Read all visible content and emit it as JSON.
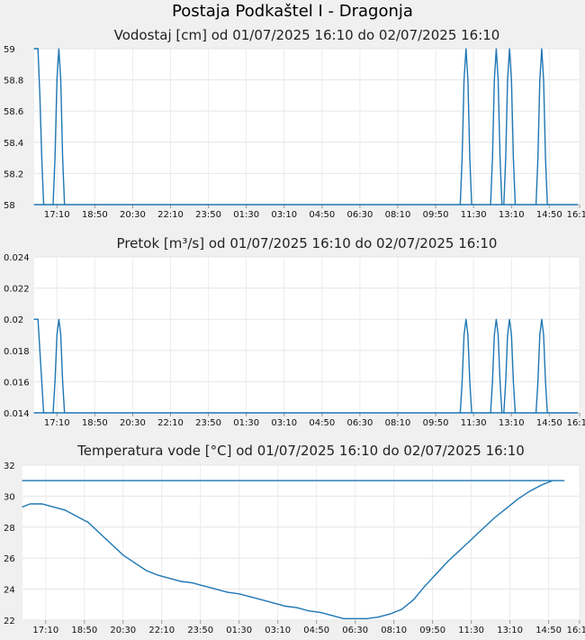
{
  "page_title": "Postaja Podkaštel I - Dragonja",
  "chart_data": [
    {
      "type": "line",
      "title": "Vodostaj [cm] od 01/07/2025 16:10 do 02/07/2025 16:10",
      "xlabel": "",
      "ylabel": "",
      "x_ticks": [
        "17:10",
        "18:50",
        "20:30",
        "22:10",
        "23:50",
        "01:30",
        "03:10",
        "04:50",
        "06:30",
        "08:10",
        "09:50",
        "11:30",
        "13:10",
        "14:50",
        "16:10"
      ],
      "y_ticks": [
        "58",
        "58.2",
        "58.4",
        "58.6",
        "58.8",
        "59"
      ],
      "ylim": [
        58,
        59
      ],
      "color": "#1f77b4",
      "grid": true,
      "series": [
        {
          "x": [
            "16:10",
            "16:15",
            "16:20",
            "16:25",
            "16:30",
            "16:35",
            "16:40",
            "16:45",
            "16:50",
            "16:55",
            "17:00",
            "17:05",
            "17:10",
            "17:15",
            "17:20",
            "17:25",
            "17:30",
            "17:35",
            "17:40",
            "17:45",
            "17:50",
            "10:50",
            "10:55",
            "11:00",
            "11:05",
            "11:10",
            "11:15",
            "11:20",
            "11:25",
            "11:30",
            "11:35",
            "11:40",
            "11:45",
            "11:50",
            "11:55",
            "12:00",
            "12:05",
            "12:10",
            "12:15",
            "12:20",
            "12:25",
            "12:30",
            "12:35",
            "12:40",
            "12:45",
            "12:50",
            "12:55",
            "13:00",
            "13:05",
            "13:10",
            "13:15",
            "13:20",
            "13:25",
            "13:30",
            "13:35",
            "13:40",
            "13:45",
            "13:50",
            "13:55",
            "14:00",
            "14:05",
            "14:10",
            "14:15",
            "14:20",
            "14:25",
            "14:30",
            "14:35",
            "14:40",
            "14:45",
            "14:50",
            "14:55",
            "15:00",
            "15:05",
            "15:10",
            "15:15",
            "15:20",
            "15:25",
            "15:30",
            "15:35",
            "15:40",
            "15:45",
            "15:50",
            "15:55",
            "16:00",
            "16:05",
            "16:10"
          ],
          "values": [
            59,
            59,
            59,
            58.7,
            58.3,
            58,
            58,
            58,
            58,
            58,
            58,
            58.3,
            58.8,
            59,
            58.8,
            58.3,
            58,
            58,
            58,
            58,
            58,
            58,
            58,
            58.3,
            58.8,
            59,
            58.8,
            58.3,
            58,
            58,
            58,
            58,
            58,
            58,
            58,
            58,
            58,
            58,
            58,
            58.3,
            58.8,
            59,
            58.8,
            58.3,
            58,
            58,
            58.3,
            58.8,
            59,
            58.8,
            58.3,
            58,
            58,
            58,
            58,
            58,
            58,
            58,
            58,
            58,
            58,
            58,
            58,
            58.3,
            58.8,
            59,
            58.8,
            58.3,
            58,
            58,
            58,
            58,
            58,
            58,
            58,
            58,
            58,
            58,
            58,
            58,
            58,
            58,
            58,
            58,
            58,
            58
          ]
        }
      ]
    },
    {
      "type": "line",
      "title": "Pretok [m³/s] od 01/07/2025 16:10 do 02/07/2025 16:10",
      "xlabel": "",
      "ylabel": "",
      "x_ticks": [
        "17:10",
        "18:50",
        "20:30",
        "22:10",
        "23:50",
        "01:30",
        "03:10",
        "04:50",
        "06:30",
        "08:10",
        "09:50",
        "11:30",
        "13:10",
        "14:50",
        "16:10"
      ],
      "y_ticks": [
        "0.014",
        "0.016",
        "0.018",
        "0.02",
        "0.022",
        "0.024"
      ],
      "ylim": [
        0.014,
        0.024
      ],
      "color": "#1f77b4",
      "grid": true,
      "series": [
        {
          "x": [
            "16:10",
            "16:15",
            "16:20",
            "16:25",
            "16:30",
            "16:35",
            "16:40",
            "16:45",
            "16:50",
            "16:55",
            "17:00",
            "17:05",
            "17:10",
            "17:15",
            "17:20",
            "17:25",
            "17:30",
            "17:35",
            "17:40",
            "17:45",
            "17:50",
            "10:50",
            "10:55",
            "11:00",
            "11:05",
            "11:10",
            "11:15",
            "11:20",
            "11:25",
            "11:30",
            "11:35",
            "11:40",
            "11:45",
            "11:50",
            "11:55",
            "12:00",
            "12:05",
            "12:10",
            "12:15",
            "12:20",
            "12:25",
            "12:30",
            "12:35",
            "12:40",
            "12:45",
            "12:50",
            "12:55",
            "13:00",
            "13:05",
            "13:10",
            "13:15",
            "13:20",
            "13:25",
            "13:30",
            "13:35",
            "13:40",
            "13:45",
            "13:50",
            "13:55",
            "14:00",
            "14:05",
            "14:10",
            "14:15",
            "14:20",
            "14:25",
            "14:30",
            "14:35",
            "14:40",
            "14:45",
            "14:50",
            "14:55",
            "15:00",
            "15:05",
            "15:10",
            "15:15",
            "15:20",
            "15:25",
            "15:30",
            "15:35",
            "15:40",
            "15:45",
            "15:50",
            "15:55",
            "16:00",
            "16:05",
            "16:10"
          ],
          "values": [
            0.02,
            0.02,
            0.02,
            0.018,
            0.016,
            0.014,
            0.014,
            0.014,
            0.014,
            0.014,
            0.014,
            0.016,
            0.019,
            0.02,
            0.019,
            0.016,
            0.014,
            0.014,
            0.014,
            0.014,
            0.014,
            0.014,
            0.014,
            0.016,
            0.019,
            0.02,
            0.019,
            0.016,
            0.014,
            0.014,
            0.014,
            0.014,
            0.014,
            0.014,
            0.014,
            0.014,
            0.014,
            0.014,
            0.014,
            0.016,
            0.019,
            0.02,
            0.019,
            0.016,
            0.014,
            0.014,
            0.016,
            0.019,
            0.02,
            0.019,
            0.016,
            0.014,
            0.014,
            0.014,
            0.014,
            0.014,
            0.014,
            0.014,
            0.014,
            0.014,
            0.014,
            0.014,
            0.014,
            0.016,
            0.019,
            0.02,
            0.019,
            0.016,
            0.014,
            0.014,
            0.014,
            0.014,
            0.014,
            0.014,
            0.014,
            0.014,
            0.014,
            0.014,
            0.014,
            0.014,
            0.014,
            0.014,
            0.014,
            0.014,
            0.014,
            0.014
          ]
        }
      ]
    },
    {
      "type": "line",
      "title": "Temperatura vode [°C] od 01/07/2025 16:10 do 02/07/2025 16:10",
      "xlabel": "",
      "ylabel": "",
      "x_ticks": [
        "17:10",
        "18:50",
        "20:30",
        "22:10",
        "23:50",
        "01:30",
        "03:10",
        "04:50",
        "06:30",
        "08:10",
        "09:50",
        "11:30",
        "13:10",
        "14:50",
        "16:10"
      ],
      "y_ticks": [
        "22",
        "24",
        "26",
        "28",
        "30",
        "32"
      ],
      "ylim": [
        22,
        32
      ],
      "color": "#1f77b4",
      "grid": true,
      "series": [
        {
          "x": [
            "16:10",
            "16:30",
            "17:00",
            "17:30",
            "18:00",
            "18:30",
            "19:00",
            "19:30",
            "20:00",
            "20:30",
            "21:00",
            "21:30",
            "22:00",
            "22:30",
            "23:00",
            "23:30",
            "00:00",
            "00:30",
            "01:00",
            "01:30",
            "02:00",
            "02:30",
            "03:00",
            "03:30",
            "04:00",
            "04:30",
            "05:00",
            "05:30",
            "06:00",
            "06:30",
            "07:00",
            "07:30",
            "08:00",
            "08:30",
            "09:00",
            "09:30",
            "10:00",
            "10:30",
            "11:00",
            "11:30",
            "12:00",
            "12:30",
            "13:00",
            "13:30",
            "14:00",
            "14:30",
            "15:00",
            "15:30",
            "16:10"
          ],
          "values": [
            29.3,
            29.5,
            29.5,
            29.3,
            29.1,
            28.7,
            28.3,
            27.6,
            26.9,
            26.2,
            25.7,
            25.2,
            24.9,
            24.7,
            24.5,
            24.4,
            24.2,
            24.0,
            23.8,
            23.7,
            23.5,
            23.3,
            23.1,
            22.9,
            22.8,
            22.6,
            22.5,
            22.3,
            22.1,
            22.1,
            22.1,
            22.2,
            22.4,
            22.7,
            23.3,
            24.2,
            25.0,
            25.8,
            26.5,
            27.2,
            27.9,
            28.6,
            29.2,
            29.8,
            30.3,
            30.7,
            31.0,
            31.0,
            31.0
          ]
        }
      ]
    }
  ]
}
